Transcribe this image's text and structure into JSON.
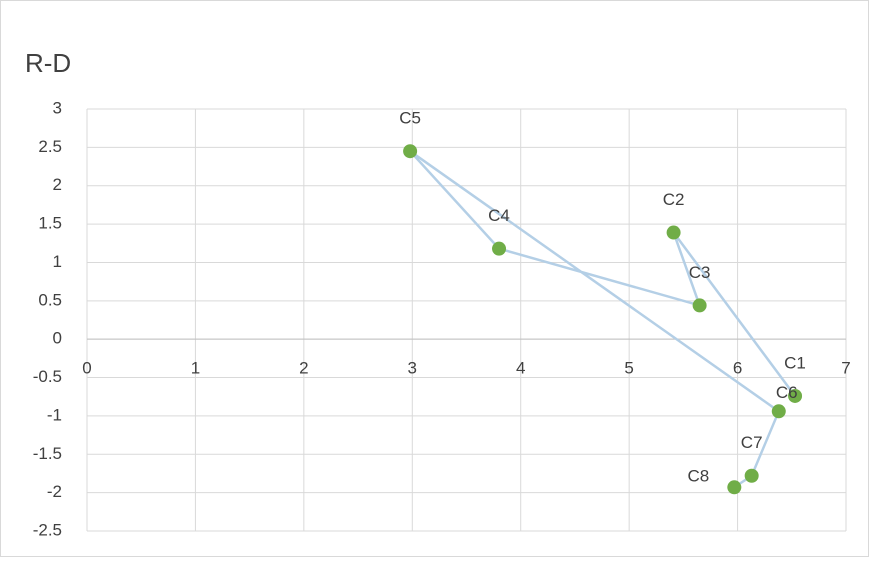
{
  "chart_data": {
    "type": "scatter",
    "title": "R-D",
    "labels": [
      "C1",
      "C2",
      "C3",
      "C4",
      "C5",
      "C6",
      "C7",
      "C8"
    ],
    "x": [
      6.53,
      5.41,
      5.65,
      3.8,
      2.98,
      6.38,
      6.13,
      5.97
    ],
    "values": [
      -0.74,
      1.39,
      0.44,
      1.18,
      2.45,
      -0.94,
      -1.78,
      -1.93
    ],
    "color": "#70ad47",
    "line_color": "#b4cfe6",
    "xlim": [
      0,
      7
    ],
    "xticks": [
      0,
      1,
      2,
      3,
      4,
      5,
      6,
      7
    ],
    "ylim": [
      -2.5,
      3
    ],
    "yticks": [
      -2.5,
      -2,
      -1.5,
      -1,
      -0.5,
      0,
      0.5,
      1,
      1.5,
      2,
      2.5,
      3
    ],
    "grid": true
  }
}
